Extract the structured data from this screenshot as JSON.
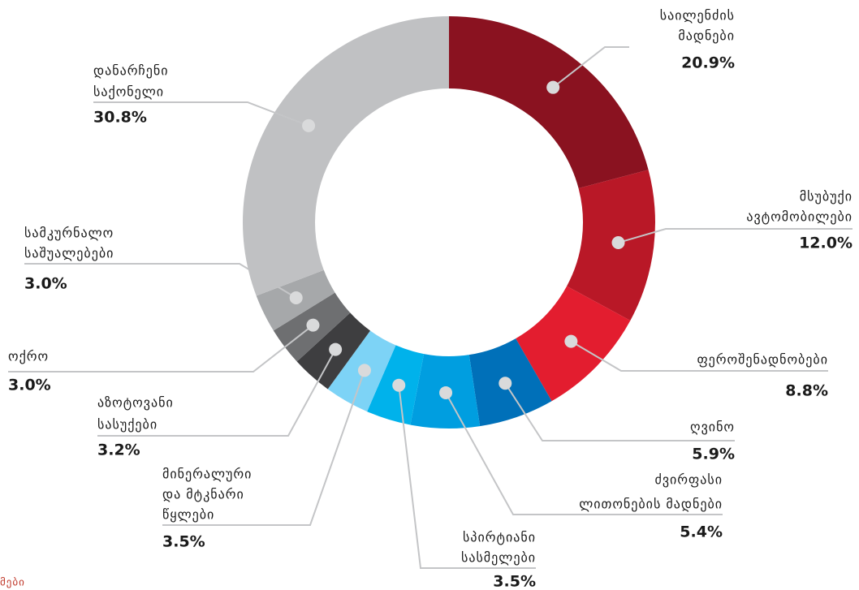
{
  "chart_data": {
    "type": "donut",
    "categories": [
      [
        "საილენძის",
        "მადნები"
      ],
      [
        "მსუბუქი",
        "ავტომობილები"
      ],
      [
        "ფეროშენადნობები"
      ],
      [
        "ღვინო"
      ],
      [
        "ძვირფასი",
        "ლითონების მადნები"
      ],
      [
        "სპირტიანი",
        "სასმელები"
      ],
      [
        "მინერალური",
        "და მტკნარი",
        "წყლები"
      ],
      [
        "აზოტოვანი",
        "სასუქები"
      ],
      [
        "ოქრო"
      ],
      [
        "სამკურნალო",
        "საშუალებები"
      ],
      [
        "დანარჩენი",
        "საქონელი"
      ]
    ],
    "values": [
      20.9,
      12.0,
      8.8,
      5.9,
      5.4,
      3.5,
      3.5,
      3.2,
      3.0,
      3.0,
      30.8
    ],
    "value_labels": [
      "20.9%",
      "12.0%",
      "8.8%",
      "5.9%",
      "5.4%",
      "3.5%",
      "3.5%",
      "3.2%",
      "3.0%",
      "3.0%",
      "30.8%"
    ],
    "colors": [
      "#8a1220",
      "#b91827",
      "#e31d2f",
      "#0070b9",
      "#009ee0",
      "#00b2eb",
      "#7dd3f6",
      "#3e3e40",
      "#6e6f71",
      "#a6a8aa",
      "#c0c1c3"
    ],
    "note": "მები"
  }
}
